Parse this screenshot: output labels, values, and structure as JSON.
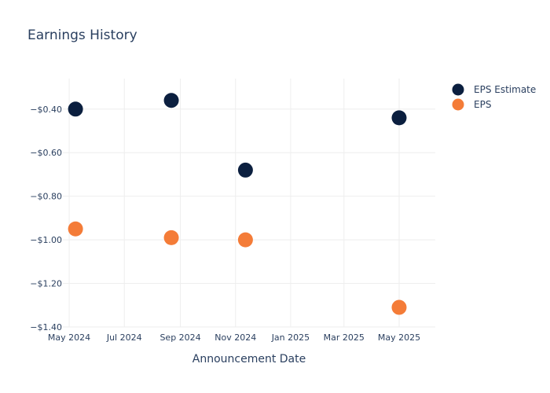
{
  "chart_data": {
    "type": "scatter",
    "title": "Earnings History",
    "xlabel": "Announcement Date",
    "ylabel": "",
    "x_ticks": [
      {
        "date": "2024-05-01",
        "label": "May 2024"
      },
      {
        "date": "2024-07-01",
        "label": "Jul 2024"
      },
      {
        "date": "2024-09-01",
        "label": "Sep 2024"
      },
      {
        "date": "2024-11-01",
        "label": "Nov 2024"
      },
      {
        "date": "2025-01-01",
        "label": "Jan 2025"
      },
      {
        "date": "2025-03-01",
        "label": "Mar 2025"
      },
      {
        "date": "2025-05-01",
        "label": "May 2025"
      }
    ],
    "y_ticks": [
      {
        "value": -0.4,
        "label": "−$0.40"
      },
      {
        "value": -0.6,
        "label": "−$0.60"
      },
      {
        "value": -0.8,
        "label": "−$0.80"
      },
      {
        "value": -1.0,
        "label": "−$1.00"
      },
      {
        "value": -1.2,
        "label": "−$1.20"
      },
      {
        "value": -1.4,
        "label": "−$1.40"
      }
    ],
    "xlim": [
      "2024-04-24",
      "2025-06-10"
    ],
    "ylim": [
      -1.4,
      -0.26
    ],
    "grid": true,
    "legend_position": "top-right",
    "series": [
      {
        "name": "EPS Estimate",
        "color": "#0b1f3f",
        "points": [
          {
            "x": "2024-05-08",
            "y": -0.4
          },
          {
            "x": "2024-08-22",
            "y": -0.36
          },
          {
            "x": "2024-11-12",
            "y": -0.68
          },
          {
            "x": "2025-05-01",
            "y": -0.44
          }
        ]
      },
      {
        "name": "EPS",
        "color": "#f47c38",
        "points": [
          {
            "x": "2024-05-08",
            "y": -0.95
          },
          {
            "x": "2024-08-22",
            "y": -0.99
          },
          {
            "x": "2024-11-12",
            "y": -1.0
          },
          {
            "x": "2025-05-01",
            "y": -1.31
          }
        ]
      }
    ]
  }
}
